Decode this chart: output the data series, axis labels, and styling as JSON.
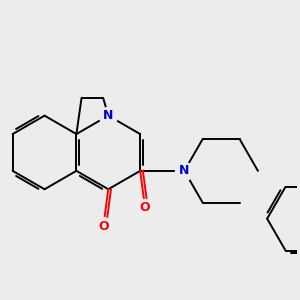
{
  "bg_color": "#ececec",
  "bond_color": "#000000",
  "N_color": "#0000cc",
  "O_color": "#ff0000",
  "lw": 1.4,
  "dbo": 0.055,
  "figsize": [
    3.0,
    3.0
  ],
  "dpi": 100,
  "xlim": [
    -2.5,
    3.5
  ],
  "ylim": [
    -2.2,
    2.2
  ]
}
